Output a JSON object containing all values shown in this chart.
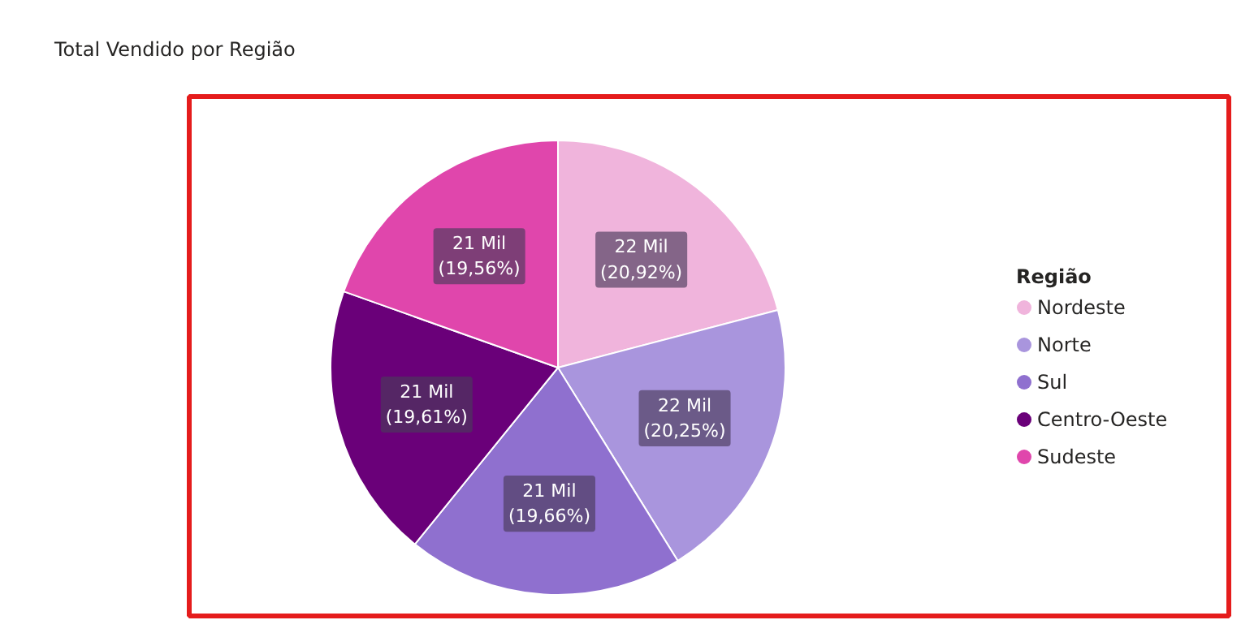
{
  "chart_data": {
    "type": "pie",
    "title": "Total Vendido por Região",
    "legend_title": "Região",
    "legend": "right",
    "categories": [
      "Nordeste",
      "Norte",
      "Sul",
      "Centro-Oeste",
      "Sudeste"
    ],
    "values": [
      20.92,
      20.25,
      19.66,
      19.61,
      19.56
    ],
    "colors": [
      "#f0b4dc",
      "#a995dd",
      "#8f70cf",
      "#6a0079",
      "#e046ac"
    ],
    "value_labels": [
      "22 Mil\n(20,92%)",
      "22 Mil\n(20,25%)",
      "21 Mil\n(19,66%)",
      "21 Mil\n(19,61%)",
      "21 Mil\n(19,56%)"
    ]
  }
}
